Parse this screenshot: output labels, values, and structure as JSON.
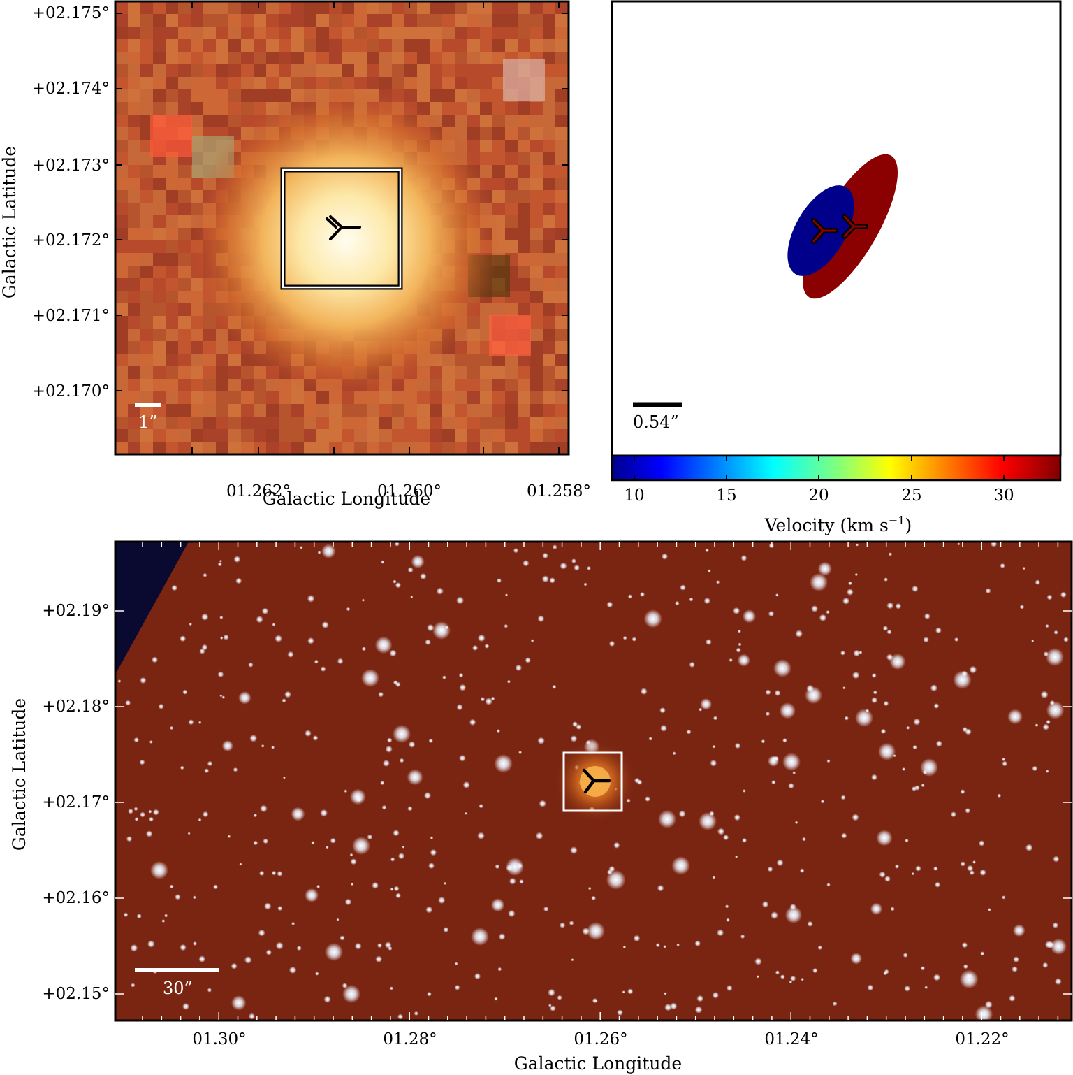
{
  "panels": {
    "zoom": {
      "xlabel": "Galactic Longitude",
      "ylabel": "Galactic Latitude",
      "xticks": [
        "01.262°",
        "01.260°",
        "01.258°"
      ],
      "yticks": [
        "+02.175°",
        "+02.174°",
        "+02.173°",
        "+02.172°",
        "+02.171°",
        "+02.170°"
      ],
      "scalebar": "1”",
      "colors": {
        "glow_core": "#fffbe8",
        "glow_mid": "#f2b35a",
        "background": "#b5472a"
      }
    },
    "velocity": {
      "scalebar": "0.54”",
      "colorbar": {
        "label": "Velocity (km s",
        "label_sup": "−1",
        "label_close": ")",
        "ticks": [
          "10",
          "15",
          "20",
          "25",
          "30"
        ],
        "range": [
          8.8,
          33.2
        ],
        "colormap": "jet"
      },
      "components": [
        {
          "velocity_kms": 10.5,
          "color": "#00008b"
        },
        {
          "velocity_kms": 32.5,
          "color": "#8b0000"
        }
      ]
    },
    "wide": {
      "xlabel": "Galactic Longitude",
      "ylabel": "Galactic Latitude",
      "xticks": [
        "01.30°",
        "01.28°",
        "01.26°",
        "01.24°",
        "01.22°"
      ],
      "yticks": [
        "+02.19°",
        "+02.18°",
        "+02.17°",
        "+02.16°",
        "+02.15°"
      ],
      "scalebar": "30”",
      "colors": {
        "background": "#7a2512",
        "stars": "#ffffff"
      }
    }
  },
  "marker_icon": "three-pronged-marker-icon"
}
